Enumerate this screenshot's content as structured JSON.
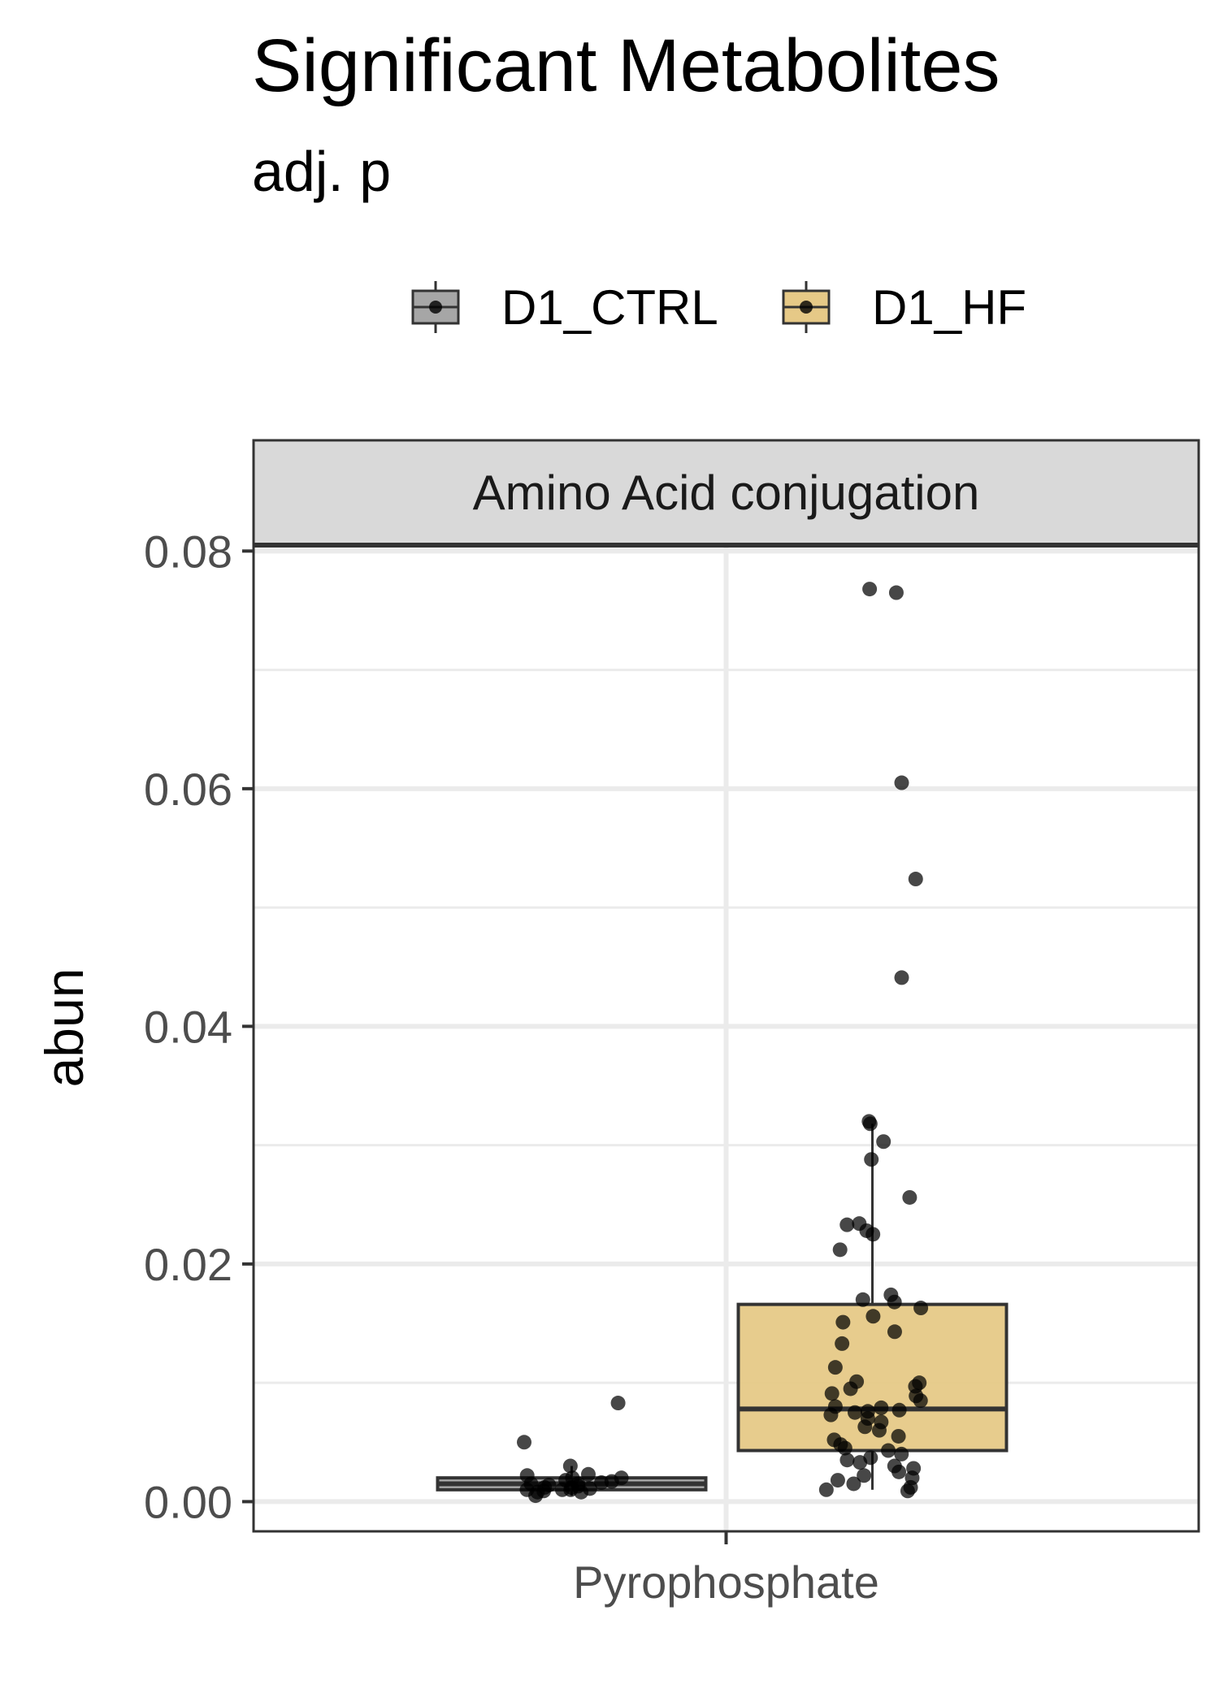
{
  "chart_data": {
    "type": "box",
    "title": "Significant Metabolites",
    "subtitle": "adj. p",
    "ylabel": "abun",
    "xlabel": "",
    "facet": "Amino Acid conjugation",
    "categories": [
      "Pyrophosphate"
    ],
    "ylim": [
      -0.0025,
      0.0805
    ],
    "yticks": [
      0.0,
      0.02,
      0.04,
      0.06,
      0.08
    ],
    "ytick_labels": [
      "0.00",
      "0.02",
      "0.04",
      "0.06",
      "0.08"
    ],
    "grid": true,
    "legend_position": "top",
    "series": [
      {
        "name": "D1_CTRL",
        "color": "#a6a6a6",
        "box": {
          "min": 0.0005,
          "q1": 0.001,
          "median": 0.0015,
          "q3": 0.002,
          "max": 0.003
        },
        "points": [
          0.001,
          0.0013,
          0.0015,
          0.0012,
          0.0018,
          0.002,
          0.0022,
          0.0017,
          0.0008,
          0.001,
          0.0014,
          0.0016,
          0.0023,
          0.001,
          0.0012,
          0.0009,
          0.0011,
          0.0005,
          0.0015,
          0.003,
          0.0008,
          0.005,
          0.0083,
          0.002
        ]
      },
      {
        "name": "D1_HF",
        "color": "#e6c987",
        "box": {
          "min": 0.001,
          "q1": 0.0043,
          "median": 0.0078,
          "q3": 0.0166,
          "max": 0.0318
        },
        "points": [
          0.0765,
          0.0768,
          0.0605,
          0.0524,
          0.0441,
          0.032,
          0.0318,
          0.0303,
          0.0288,
          0.0256,
          0.0234,
          0.0233,
          0.0228,
          0.0225,
          0.0212,
          0.0174,
          0.017,
          0.0168,
          0.0163,
          0.0156,
          0.0151,
          0.0143,
          0.0133,
          0.0113,
          0.0101,
          0.01,
          0.0097,
          0.0095,
          0.0091,
          0.0089,
          0.0085,
          0.008,
          0.0079,
          0.0077,
          0.0076,
          0.0075,
          0.0073,
          0.007,
          0.0067,
          0.0063,
          0.006,
          0.0055,
          0.0052,
          0.0048,
          0.0045,
          0.0043,
          0.004,
          0.0037,
          0.0033,
          0.003,
          0.0028,
          0.0025,
          0.0022,
          0.002,
          0.0018,
          0.0015,
          0.0012,
          0.001,
          0.0009,
          0.0035
        ]
      }
    ]
  }
}
